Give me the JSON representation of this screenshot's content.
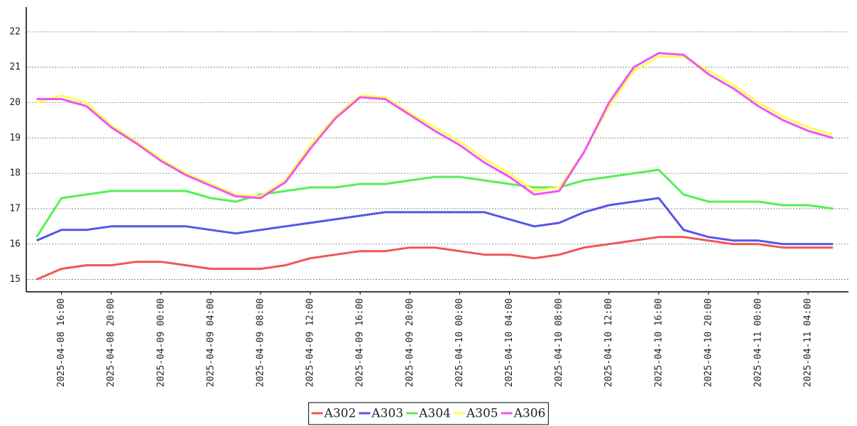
{
  "chart_data": {
    "type": "line",
    "x": [
      "2025-04-08 14:00",
      "2025-04-08 16:00",
      "2025-04-08 18:00",
      "2025-04-08 20:00",
      "2025-04-08 22:00",
      "2025-04-09 00:00",
      "2025-04-09 02:00",
      "2025-04-09 04:00",
      "2025-04-09 06:00",
      "2025-04-09 08:00",
      "2025-04-09 10:00",
      "2025-04-09 12:00",
      "2025-04-09 14:00",
      "2025-04-09 16:00",
      "2025-04-09 18:00",
      "2025-04-09 20:00",
      "2025-04-09 22:00",
      "2025-04-10 00:00",
      "2025-04-10 02:00",
      "2025-04-10 04:00",
      "2025-04-10 06:00",
      "2025-04-10 08:00",
      "2025-04-10 10:00",
      "2025-04-10 12:00",
      "2025-04-10 14:00",
      "2025-04-10 16:00",
      "2025-04-10 18:00",
      "2025-04-10 20:00",
      "2025-04-10 22:00",
      "2025-04-11 00:00",
      "2025-04-11 02:00",
      "2025-04-11 04:00",
      "2025-04-11 06:00"
    ],
    "series": [
      {
        "name": "A302",
        "color": "#f05555",
        "values": [
          15.0,
          15.3,
          15.4,
          15.4,
          15.5,
          15.5,
          15.4,
          15.3,
          15.3,
          15.3,
          15.4,
          15.6,
          15.7,
          15.8,
          15.8,
          15.9,
          15.9,
          15.8,
          15.7,
          15.7,
          15.6,
          15.7,
          15.9,
          16.0,
          16.1,
          16.2,
          16.2,
          16.1,
          16.0,
          16.0,
          15.9,
          15.9,
          15.9
        ]
      },
      {
        "name": "A303",
        "color": "#5555e8",
        "values": [
          16.1,
          16.4,
          16.4,
          16.5,
          16.5,
          16.5,
          16.5,
          16.4,
          16.3,
          16.4,
          16.5,
          16.6,
          16.7,
          16.8,
          16.9,
          16.9,
          16.9,
          16.9,
          16.9,
          16.7,
          16.5,
          16.6,
          16.9,
          17.1,
          17.2,
          17.3,
          16.4,
          16.2,
          16.1,
          16.1,
          16.0,
          16.0,
          16.0
        ]
      },
      {
        "name": "A304",
        "color": "#55f055",
        "values": [
          16.2,
          17.3,
          17.4,
          17.5,
          17.5,
          17.5,
          17.5,
          17.3,
          17.2,
          17.4,
          17.5,
          17.6,
          17.6,
          17.7,
          17.7,
          17.8,
          17.9,
          17.9,
          17.8,
          17.7,
          17.6,
          17.6,
          17.8,
          17.9,
          18.0,
          18.1,
          17.4,
          17.2,
          17.2,
          17.2,
          17.1,
          17.1,
          17.0
        ]
      },
      {
        "name": "A305",
        "color": "#ffff55",
        "values": [
          20.0,
          20.2,
          20.0,
          19.35,
          18.9,
          18.4,
          18.0,
          17.7,
          17.4,
          17.35,
          17.8,
          18.8,
          19.6,
          20.2,
          20.15,
          19.7,
          19.3,
          18.9,
          18.4,
          18.0,
          17.5,
          17.6,
          18.6,
          19.9,
          20.9,
          21.3,
          21.3,
          20.9,
          20.5,
          20.0,
          19.6,
          19.3,
          19.1
        ]
      },
      {
        "name": "A306",
        "color": "#f055f0",
        "values": [
          20.1,
          20.1,
          19.9,
          19.3,
          18.85,
          18.35,
          17.95,
          17.65,
          17.35,
          17.3,
          17.75,
          18.7,
          19.55,
          20.15,
          20.1,
          19.65,
          19.2,
          18.8,
          18.3,
          17.9,
          17.4,
          17.5,
          18.6,
          20.0,
          21.0,
          21.4,
          21.35,
          20.8,
          20.4,
          19.9,
          19.5,
          19.2,
          19.0
        ]
      }
    ],
    "xlim": [
      "2025-04-08 13:10",
      "2025-04-11 07:15"
    ],
    "xticks": [
      "2025-04-08 16:00",
      "2025-04-08 20:00",
      "2025-04-09 00:00",
      "2025-04-09 04:00",
      "2025-04-09 08:00",
      "2025-04-09 12:00",
      "2025-04-09 16:00",
      "2025-04-09 20:00",
      "2025-04-10 00:00",
      "2025-04-10 04:00",
      "2025-04-10 08:00",
      "2025-04-10 12:00",
      "2025-04-10 16:00",
      "2025-04-10 20:00",
      "2025-04-11 00:00",
      "2025-04-11 04:00"
    ],
    "ylim": [
      14.65,
      22.7
    ],
    "yticks": [
      15,
      16,
      17,
      18,
      19,
      20,
      21,
      22
    ],
    "grid": true,
    "legend": "bottom"
  }
}
